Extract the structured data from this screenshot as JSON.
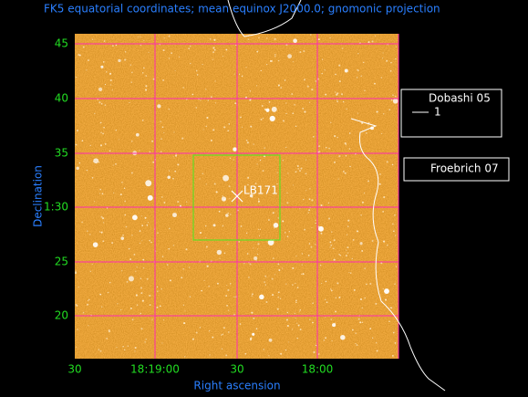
{
  "title": "FK5 equatorial coordinates; mean equinox J2000.0; gnomonic projection",
  "x_axis": {
    "label": "Right ascension",
    "ticks": [
      "30",
      "18:19:00",
      "30",
      "18:00"
    ]
  },
  "y_axis": {
    "label": "Declination",
    "ticks": [
      "45",
      "40",
      "35",
      "1:30",
      "25",
      "20"
    ]
  },
  "annotation": "LB171",
  "legends": [
    {
      "title": "Dobashi 05",
      "entry": "1"
    },
    {
      "title": "Froebrich 07"
    }
  ]
}
